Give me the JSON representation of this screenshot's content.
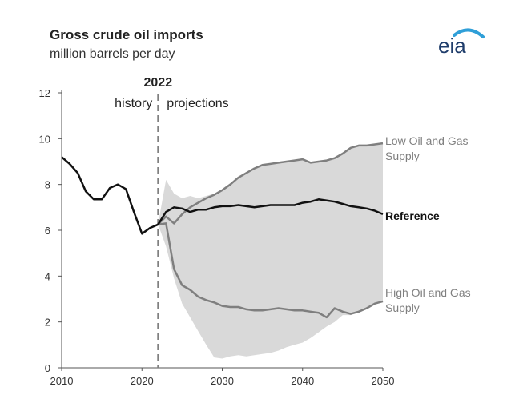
{
  "header": {
    "title": "Gross crude oil imports",
    "subtitle": "million barrels per day",
    "logo_text": "eia"
  },
  "colors": {
    "history_line": "#111111",
    "reference_line": "#111111",
    "case_line": "#7f7f7f",
    "band": "#d9d9d9",
    "divider": "#808080",
    "axis": "#555555",
    "logo_text": "#1f3d6b",
    "logo_arc": "#2f9fd8"
  },
  "chart_data": {
    "type": "line",
    "title": "Gross crude oil imports",
    "subtitle": "million barrels per day",
    "xlim": [
      2010,
      2050
    ],
    "ylim": [
      0,
      12
    ],
    "x_ticks": [
      2010,
      2020,
      2030,
      2040,
      2050
    ],
    "y_ticks": [
      0,
      2,
      4,
      6,
      8,
      10,
      12
    ],
    "grid": false,
    "annotations": {
      "divider_year": 2022,
      "divider_label": "2022",
      "history_label": "history",
      "projections_label": "projections"
    },
    "history": {
      "x": [
        2010,
        2011,
        2012,
        2013,
        2014,
        2015,
        2016,
        2017,
        2018,
        2019,
        2020,
        2021,
        2022
      ],
      "y": [
        9.2,
        8.9,
        8.5,
        7.7,
        7.35,
        7.35,
        7.85,
        8.0,
        7.8,
        6.8,
        5.85,
        6.1,
        6.25
      ]
    },
    "series": [
      {
        "name": "Reference",
        "x": [
          2022,
          2023,
          2024,
          2025,
          2026,
          2027,
          2028,
          2029,
          2030,
          2031,
          2032,
          2033,
          2034,
          2035,
          2036,
          2037,
          2038,
          2039,
          2040,
          2041,
          2042,
          2043,
          2044,
          2045,
          2046,
          2047,
          2048,
          2049,
          2050
        ],
        "y": [
          6.25,
          6.8,
          7.0,
          6.95,
          6.8,
          6.9,
          6.9,
          7.0,
          7.05,
          7.05,
          7.1,
          7.05,
          7.0,
          7.05,
          7.1,
          7.1,
          7.1,
          7.1,
          7.2,
          7.25,
          7.35,
          7.3,
          7.25,
          7.15,
          7.05,
          7.0,
          6.95,
          6.85,
          6.7
        ]
      },
      {
        "name": "Low Oil and Gas Supply",
        "x": [
          2022,
          2023,
          2024,
          2025,
          2026,
          2027,
          2028,
          2029,
          2030,
          2031,
          2032,
          2033,
          2034,
          2035,
          2036,
          2037,
          2038,
          2039,
          2040,
          2041,
          2042,
          2043,
          2044,
          2045,
          2046,
          2047,
          2048,
          2049,
          2050
        ],
        "y": [
          6.25,
          6.6,
          6.3,
          6.7,
          7.0,
          7.2,
          7.4,
          7.55,
          7.75,
          8.0,
          8.3,
          8.5,
          8.7,
          8.85,
          8.9,
          8.95,
          9.0,
          9.05,
          9.1,
          8.95,
          9.0,
          9.05,
          9.15,
          9.35,
          9.6,
          9.7,
          9.7,
          9.75,
          9.8
        ]
      },
      {
        "name": "High Oil and Gas Supply",
        "x": [
          2022,
          2023,
          2024,
          2025,
          2026,
          2027,
          2028,
          2029,
          2030,
          2031,
          2032,
          2033,
          2034,
          2035,
          2036,
          2037,
          2038,
          2039,
          2040,
          2041,
          2042,
          2043,
          2044,
          2045,
          2046,
          2047,
          2048,
          2049,
          2050
        ],
        "y": [
          6.25,
          6.3,
          4.3,
          3.6,
          3.4,
          3.1,
          2.95,
          2.85,
          2.7,
          2.65,
          2.65,
          2.55,
          2.5,
          2.5,
          2.55,
          2.6,
          2.55,
          2.5,
          2.5,
          2.45,
          2.4,
          2.2,
          2.6,
          2.45,
          2.35,
          2.45,
          2.6,
          2.8,
          2.9
        ]
      }
    ],
    "band": {
      "x": [
        2022,
        2023,
        2024,
        2025,
        2026,
        2027,
        2028,
        2029,
        2030,
        2031,
        2032,
        2033,
        2034,
        2035,
        2036,
        2037,
        2038,
        2039,
        2040,
        2041,
        2042,
        2043,
        2044,
        2045,
        2046,
        2047,
        2048,
        2049,
        2050
      ],
      "upper": [
        6.25,
        8.2,
        7.6,
        7.4,
        7.5,
        7.4,
        7.5,
        7.6,
        7.75,
        8.0,
        8.3,
        8.5,
        8.7,
        8.85,
        8.9,
        8.95,
        9.0,
        9.05,
        9.1,
        8.95,
        9.0,
        9.05,
        9.15,
        9.35,
        9.6,
        9.7,
        9.7,
        9.75,
        9.8
      ],
      "lower": [
        6.25,
        5.3,
        3.9,
        2.8,
        2.2,
        1.6,
        1.0,
        0.45,
        0.4,
        0.5,
        0.55,
        0.5,
        0.55,
        0.6,
        0.65,
        0.75,
        0.9,
        1.0,
        1.1,
        1.3,
        1.55,
        1.8,
        2.0,
        2.3,
        2.3,
        2.45,
        2.6,
        2.8,
        2.9
      ]
    },
    "labels": {
      "reference": "Reference",
      "low_line1": "Low Oil and Gas",
      "low_line2": "Supply",
      "high_line1": "High Oil and Gas",
      "high_line2": "Supply"
    }
  }
}
